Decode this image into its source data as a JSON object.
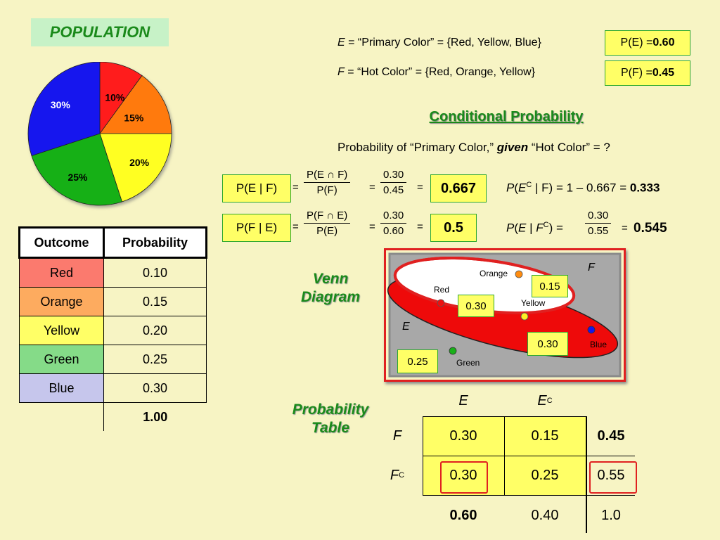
{
  "population": {
    "title": "POPULATION",
    "pie": [
      {
        "label": "10%",
        "value": 0.1,
        "color": "#ff1a1a"
      },
      {
        "label": "15%",
        "value": 0.15,
        "color": "#ff7a10"
      },
      {
        "label": "20%",
        "value": 0.2,
        "color": "#ffff22"
      },
      {
        "label": "25%",
        "value": 0.25,
        "color": "#18b018"
      },
      {
        "label": "30%",
        "value": 0.3,
        "color": "#1616ee"
      }
    ]
  },
  "definitions": {
    "e_name": "E",
    "e_text": " = “Primary Color”  = {Red, Yellow, Blue}",
    "f_name": "F",
    "f_text": " = “Hot Color”  = {Red, Orange, Yellow}",
    "pe_label": "P(E) = ",
    "pe_value": "0.60",
    "pf_label": "P(F) = ",
    "pf_value": "0.45"
  },
  "conditional": {
    "title": "Conditional Probability",
    "question_pre": "Probability of “Primary Color,” ",
    "question_given": "given",
    "question_post": " “Hot Color” = ?",
    "row1": {
      "lhs": "P(E | F)",
      "frac_num": "P(E ∩ F)",
      "frac_den": "P(F)",
      "num_val": "0.30",
      "den_val": "0.45",
      "result": "0.667",
      "side_pre": "P(E",
      "side_sup": "C",
      "side_mid": " | F) = 1 – 0.667 = ",
      "side_result": "0.333"
    },
    "row2": {
      "lhs": "P(F | E)",
      "frac_num": "P(F ∩ E)",
      "frac_den": "P(E)",
      "num_val": "0.30",
      "den_val": "0.60",
      "result": "0.5",
      "side_pre": "P(E | F",
      "side_sup": "C",
      "side_mid": ") = ",
      "side_num": "0.30",
      "side_den": "0.55",
      "side_result": "0.545"
    },
    "eq": "="
  },
  "outcome_table": {
    "headers": [
      "Outcome",
      "Probability"
    ],
    "rows": [
      {
        "outcome": "Red",
        "prob": "0.10",
        "color": "#fb7a6e"
      },
      {
        "outcome": "Orange",
        "prob": "0.15",
        "color": "#fdab5f"
      },
      {
        "outcome": "Yellow",
        "prob": "0.20",
        "color": "#ffff66"
      },
      {
        "outcome": "Green",
        "prob": "0.25",
        "color": "#85db88"
      },
      {
        "outcome": "Blue",
        "prob": "0.30",
        "color": "#c6c6ec"
      }
    ],
    "total": "1.00"
  },
  "venn": {
    "side_label_1": "Venn",
    "side_label_2": "Diagram",
    "e_label": "E",
    "f_label": "F",
    "items": {
      "orange": "Orange",
      "red": "Red",
      "yellow": "Yellow",
      "blue": "Blue",
      "green": "Green"
    },
    "values": {
      "f_only": "0.15",
      "both": "0.30",
      "e_only": "0.30",
      "neither": "0.25"
    }
  },
  "prob_table": {
    "side_label_1": "Probability",
    "side_label_2": "Table",
    "col_e": "E",
    "col_ec": "E",
    "col_ec_sup": "C",
    "row_f": "F",
    "row_fc": "F",
    "row_fc_sup": "C",
    "f_e": "0.30",
    "f_ec": "0.15",
    "f_total": "0.45",
    "fc_e": "0.30",
    "fc_ec": "0.25",
    "fc_total": "0.55",
    "e_total": "0.60",
    "ec_total": "0.40",
    "grand_total": "1.0"
  }
}
